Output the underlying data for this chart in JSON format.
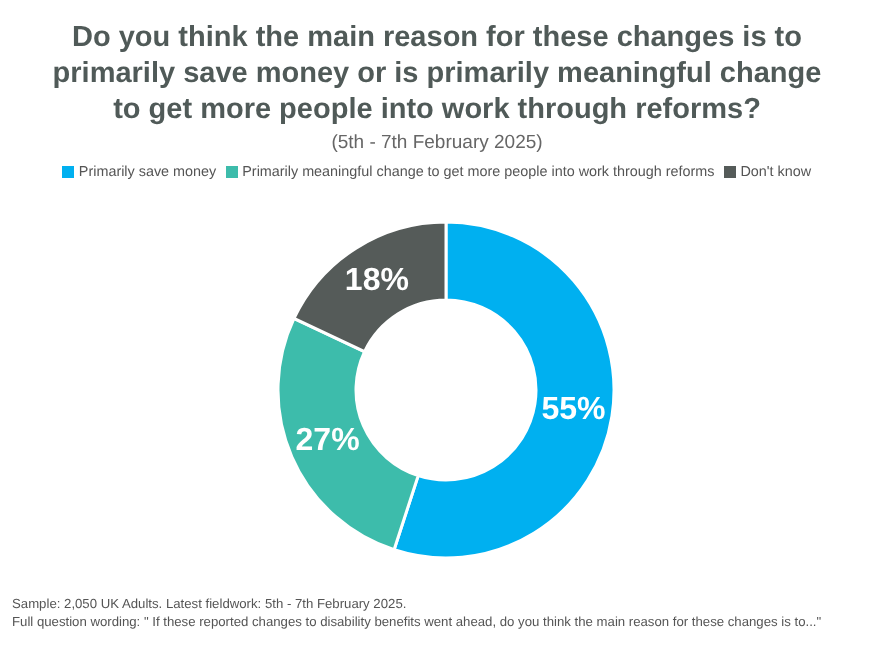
{
  "chart_data": {
    "type": "donut",
    "title": "Do you think the main reason for these changes is to primarily save money or is primarily meaningful change to get more people into work through reforms?",
    "subtitle": "(5th - 7th February 2025)",
    "categories": [
      "Primarily save money",
      "Primarily meaningful change to get more people into work through reforms",
      "Don't know"
    ],
    "values": [
      55,
      27,
      18
    ],
    "colors": [
      "#00b0f0",
      "#3dbcab",
      "#555b59"
    ],
    "value_labels": [
      "55%",
      "27%",
      "18%"
    ],
    "legend": "top",
    "annotations": [
      "Sample: 2,050 UK Adults. Latest fieldwork: 5th - 7th February 2025.",
      "Full question wording: \" If these reported changes to disability benefits went ahead, do you think the main reason for these changes is to...\""
    ]
  }
}
